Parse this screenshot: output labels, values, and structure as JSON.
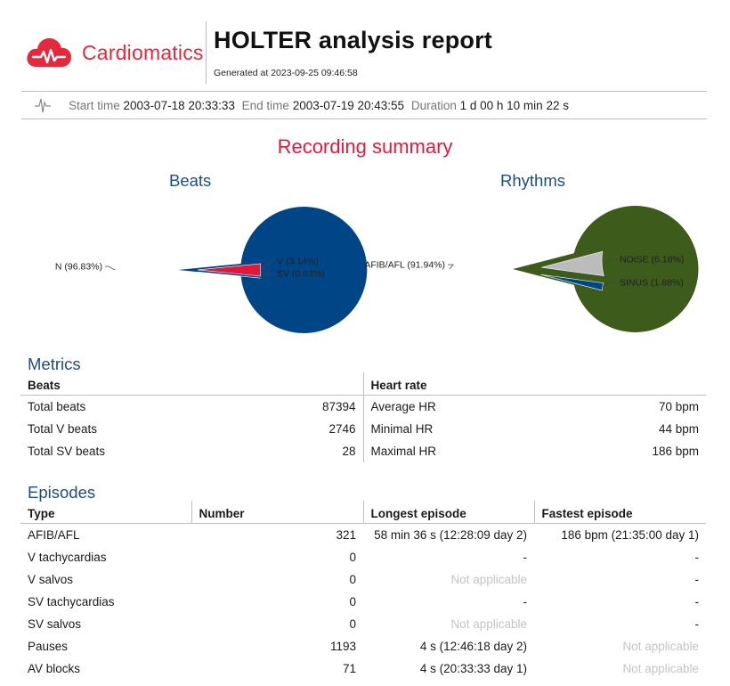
{
  "header": {
    "brand": "Cardiomatics",
    "title": "HOLTER analysis report",
    "generated": "Generated at 2023-09-25 09:46:58",
    "brand_color": "#e5283c"
  },
  "timebar": {
    "start_label": "Start time",
    "start_value": "2003-07-18 20:33:33",
    "end_label": "End time",
    "end_value": "2003-07-19 20:43:55",
    "duration_label": "Duration",
    "duration_value": "1 d 00 h 10 min 22 s"
  },
  "summary": {
    "title": "Recording summary"
  },
  "chart_data": [
    {
      "type": "pie",
      "title": "Beats",
      "slices": [
        {
          "label": "N (96.83%)",
          "value": 96.83,
          "color": "#004687"
        },
        {
          "label": "V (3.14%)",
          "value": 3.14,
          "color": "#e2173c"
        },
        {
          "label": "SV (0.03%)",
          "value": 0.03,
          "color": "#6a6a6a"
        }
      ]
    },
    {
      "type": "pie",
      "title": "Rhythms",
      "slices": [
        {
          "label": "AFIB/AFL (91.94%)",
          "value": 91.94,
          "color": "#3d5b1b"
        },
        {
          "label": "NOISE (6.18%)",
          "value": 6.18,
          "color": "#bcbcbc"
        },
        {
          "label": "SINUS (1.88%)",
          "value": 1.88,
          "color": "#004687"
        }
      ]
    }
  ],
  "metrics": {
    "title": "Metrics",
    "beats_header": "Beats",
    "hr_header": "Heart rate",
    "rows": [
      {
        "b_label": "Total beats",
        "b_value": "87394",
        "h_label": "Average HR",
        "h_value": "70 bpm"
      },
      {
        "b_label": "Total V beats",
        "b_value": "2746",
        "h_label": "Minimal HR",
        "h_value": "44 bpm"
      },
      {
        "b_label": "Total SV beats",
        "b_value": "28",
        "h_label": "Maximal HR",
        "h_value": "186 bpm"
      }
    ]
  },
  "episodes": {
    "title": "Episodes",
    "headers": [
      "Type",
      "Number",
      "Longest episode",
      "Fastest episode"
    ],
    "rows": [
      {
        "type": "AFIB/AFL",
        "number": "321",
        "longest": "58 min 36 s (12:28:09 day 2)",
        "fastest": "186 bpm (21:35:00 day 1)"
      },
      {
        "type": "V tachycardias",
        "number": "0",
        "longest": "-",
        "fastest": "-"
      },
      {
        "type": "V salvos",
        "number": "0",
        "longest": "Not applicable",
        "fastest": "-"
      },
      {
        "type": "SV tachycardias",
        "number": "0",
        "longest": "-",
        "fastest": "-"
      },
      {
        "type": "SV salvos",
        "number": "0",
        "longest": "Not applicable",
        "fastest": "-"
      },
      {
        "type": "Pauses",
        "number": "1193",
        "longest": "4 s (12:46:18 day 2)",
        "fastest": "Not applicable"
      },
      {
        "type": "AV blocks",
        "number": "71",
        "longest": "4 s (20:33:33 day 1)",
        "fastest": "Not applicable"
      }
    ]
  }
}
